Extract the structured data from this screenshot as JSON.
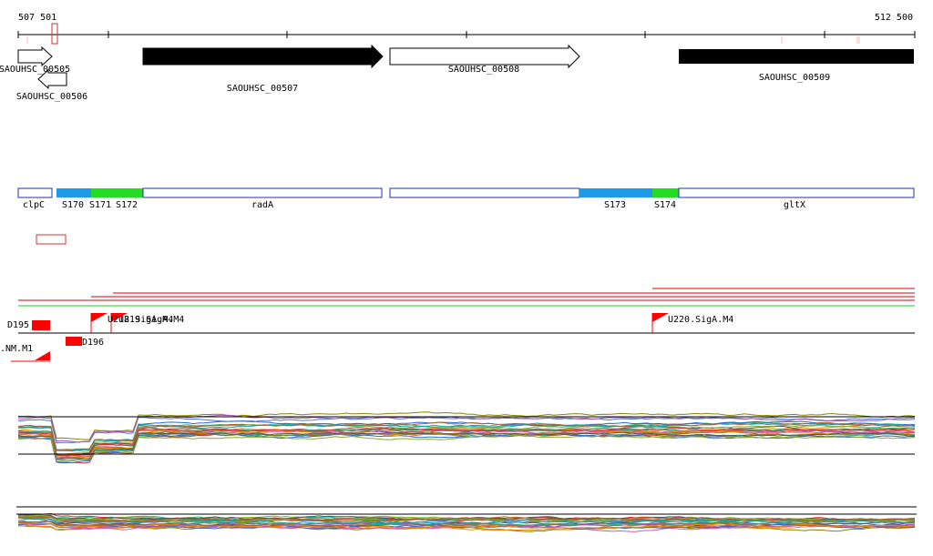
{
  "ruler": {
    "start_label": "507 501",
    "end_label": "512 500"
  },
  "genes": [
    {
      "label": "SAOUHSC_00505"
    },
    {
      "label": "SAOUHSC_00506"
    },
    {
      "label": "SAOUHSC_00507"
    },
    {
      "label": "SAOUHSC_00508"
    },
    {
      "label": "SAOUHSC_00509"
    }
  ],
  "segments": [
    {
      "label": "clpC"
    },
    {
      "label": "S170"
    },
    {
      "label": "S171"
    },
    {
      "label": "S172"
    },
    {
      "label": "radA"
    },
    {
      "label": "S173"
    },
    {
      "label": "S174"
    },
    {
      "label": "gltX"
    }
  ],
  "features": [
    {
      "label": "D195"
    },
    {
      "label": "D196"
    },
    {
      "label": ".NM.M1"
    },
    {
      "label": "U218.SigA.M4"
    },
    {
      "label": "U219.SigA.M4"
    },
    {
      "label": "U220.SigA.M4"
    }
  ]
}
